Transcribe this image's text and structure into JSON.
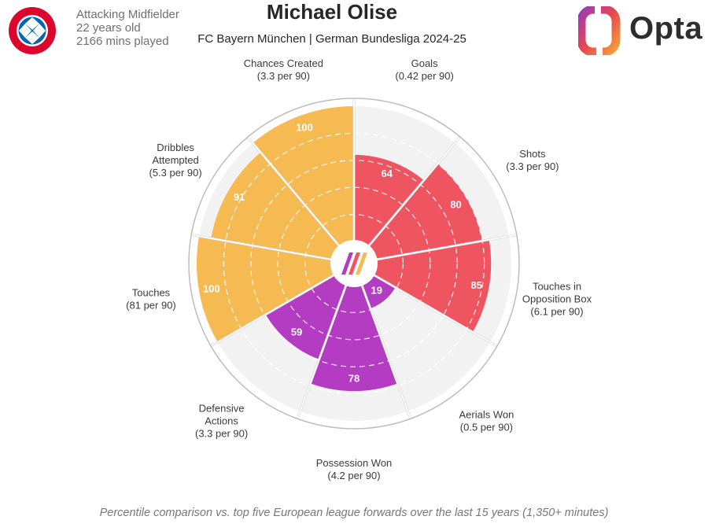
{
  "header": {
    "club_logo_text": "FC BAYERN MÜNCHEN",
    "position": "Attacking Midfielder",
    "age": "22 years old",
    "minutes": "2166 mins played",
    "player_name": "Michael Olise",
    "subtitle": "FC Bayern München | German Bundesliga 2024-25",
    "brand": "Opta"
  },
  "footnote": "Percentile comparison vs. top five European league forwards over the last 15 years (1,350+ minutes)",
  "colors": {
    "attacking": "#EE5560",
    "possession": "#B33CC3",
    "creation": "#F6BA52",
    "empty": "#F2F2F2",
    "ring": "#BDBDBD",
    "text": "#3A3A3A"
  },
  "chart_data": {
    "type": "polar-bar",
    "scale_max": 100,
    "grid": "dashed rings at 20, 40, 60, 80",
    "categories": [
      {
        "name": "Goals",
        "detail": "(0.42 per 90)",
        "value": 64,
        "group": "attacking"
      },
      {
        "name": "Shots",
        "detail": "(3.3 per 90)",
        "value": 80,
        "group": "attacking"
      },
      {
        "name": "Touches in Opposition Box",
        "detail": "(6.1 per 90)",
        "value": 85,
        "group": "attacking"
      },
      {
        "name": "Aerials Won",
        "detail": "(0.5 per 90)",
        "value": 19,
        "group": "possession"
      },
      {
        "name": "Possession Won",
        "detail": "(4.2 per 90)",
        "value": 78,
        "group": "possession"
      },
      {
        "name": "Defensive Actions",
        "detail": "(3.3 per 90)",
        "value": 59,
        "group": "possession"
      },
      {
        "name": "Touches",
        "detail": "(81 per 90)",
        "value": 100,
        "group": "creation"
      },
      {
        "name": "Dribbles Attempted",
        "detail": "(5.3 per 90)",
        "value": 91,
        "group": "creation"
      },
      {
        "name": "Chances Created",
        "detail": "(3.3 per 90)",
        "value": 100,
        "group": "creation"
      }
    ]
  }
}
